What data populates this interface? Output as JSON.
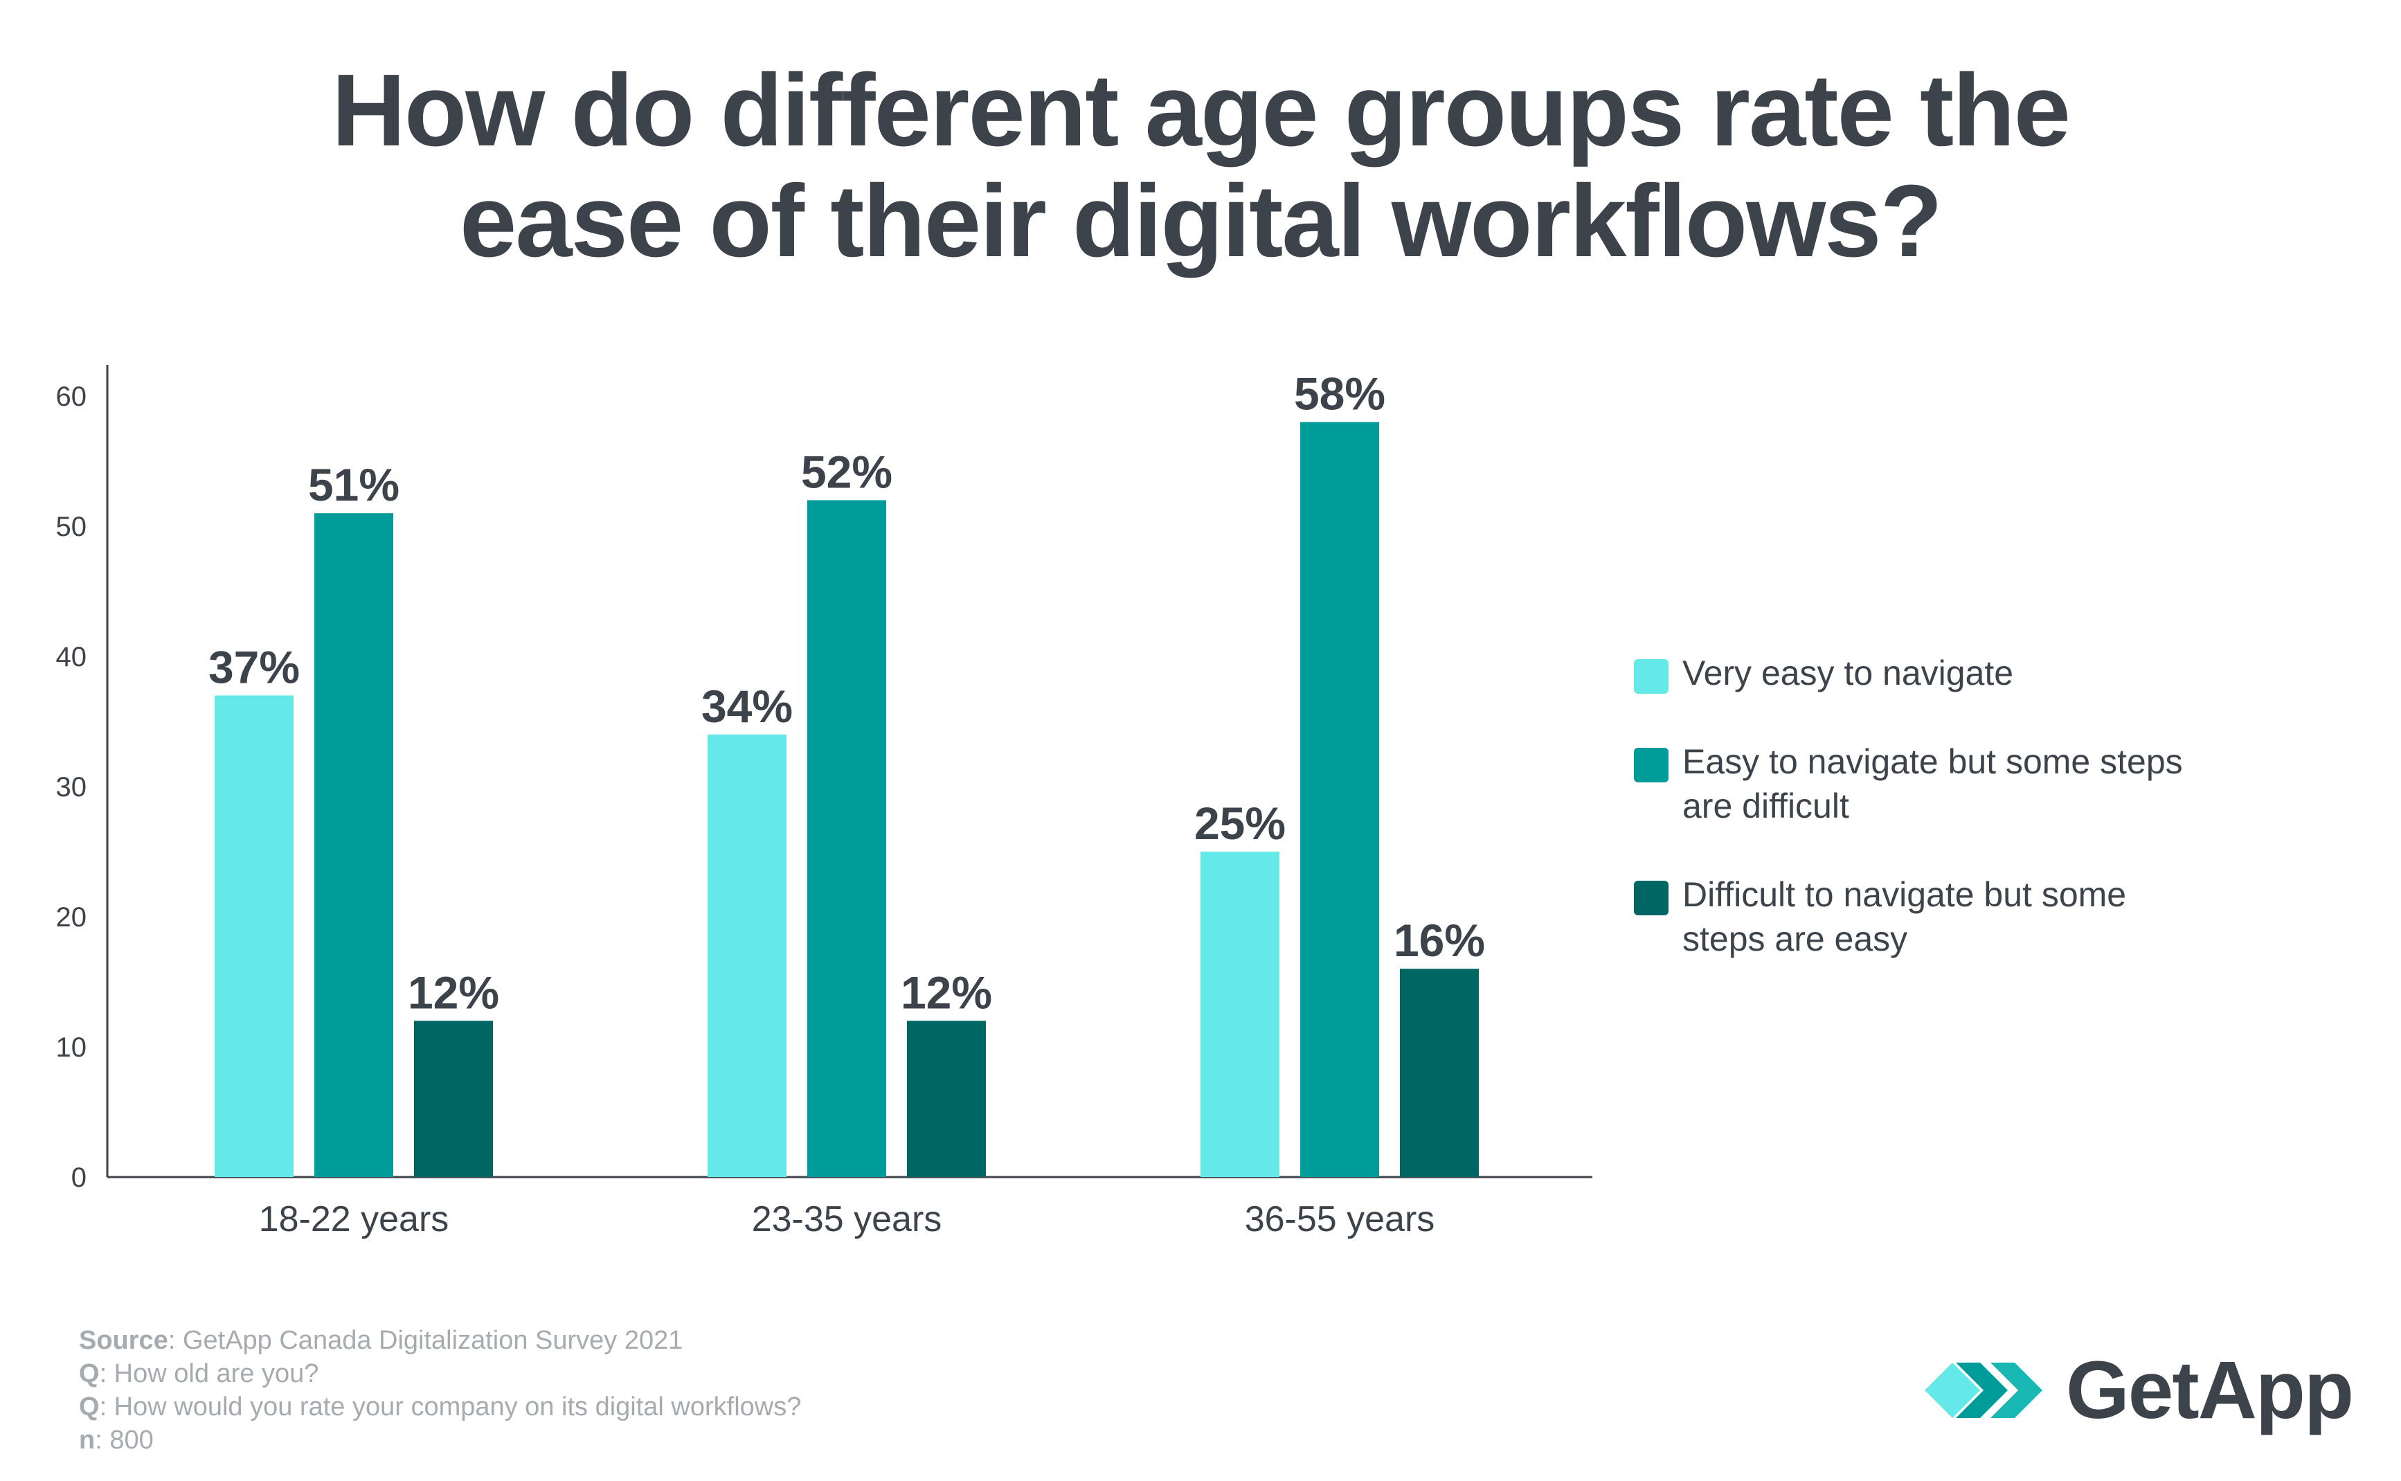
{
  "title_lines": [
    "How do different age groups rate the",
    "ease of their digital workflows?"
  ],
  "chart_data": {
    "type": "bar",
    "categories": [
      "18-22 years",
      "23-35 years",
      "36-55 years"
    ],
    "series": [
      {
        "name": "Very easy to navigate",
        "values": [
          37,
          34,
          25
        ],
        "labels": [
          "37%",
          "34%",
          "25%"
        ],
        "color": "#64e8e8"
      },
      {
        "name": "Easy to navigate but some steps are difficult",
        "values": [
          51,
          52,
          58
        ],
        "labels": [
          "51%",
          "52%",
          "58%"
        ],
        "color": "#009c9a"
      },
      {
        "name": "Difficult to navigate but some steps are easy",
        "values": [
          12,
          12,
          16
        ],
        "labels": [
          "12%",
          "12%",
          "16%"
        ],
        "color": "#006664"
      }
    ],
    "yticks": [
      0,
      10,
      20,
      30,
      40,
      50,
      60
    ],
    "ylim": [
      0,
      65
    ],
    "xlabel": "",
    "ylabel": "",
    "legend": "right"
  },
  "legend": [
    {
      "label_lines": [
        "Very easy to navigate"
      ],
      "color": "#64e8e8"
    },
    {
      "label_lines": [
        "Easy to navigate but some steps",
        "are difficult"
      ],
      "color": "#009c9a"
    },
    {
      "label_lines": [
        "Difficult to navigate but some",
        "steps are easy"
      ],
      "color": "#006664"
    }
  ],
  "source": {
    "lines": [
      {
        "key": "Source",
        "text": ": GetApp Canada Digitalization Survey 2021"
      },
      {
        "key": "Q",
        "text": ": How old are you?"
      },
      {
        "key": "Q",
        "text": ": How would you rate your company on its digital workflows?"
      },
      {
        "key": "n",
        "text": ": 800"
      }
    ]
  },
  "logo": {
    "text": "GetApp",
    "colors": [
      "#64e8e8",
      "#009c9a",
      "#1ab8b4"
    ]
  }
}
